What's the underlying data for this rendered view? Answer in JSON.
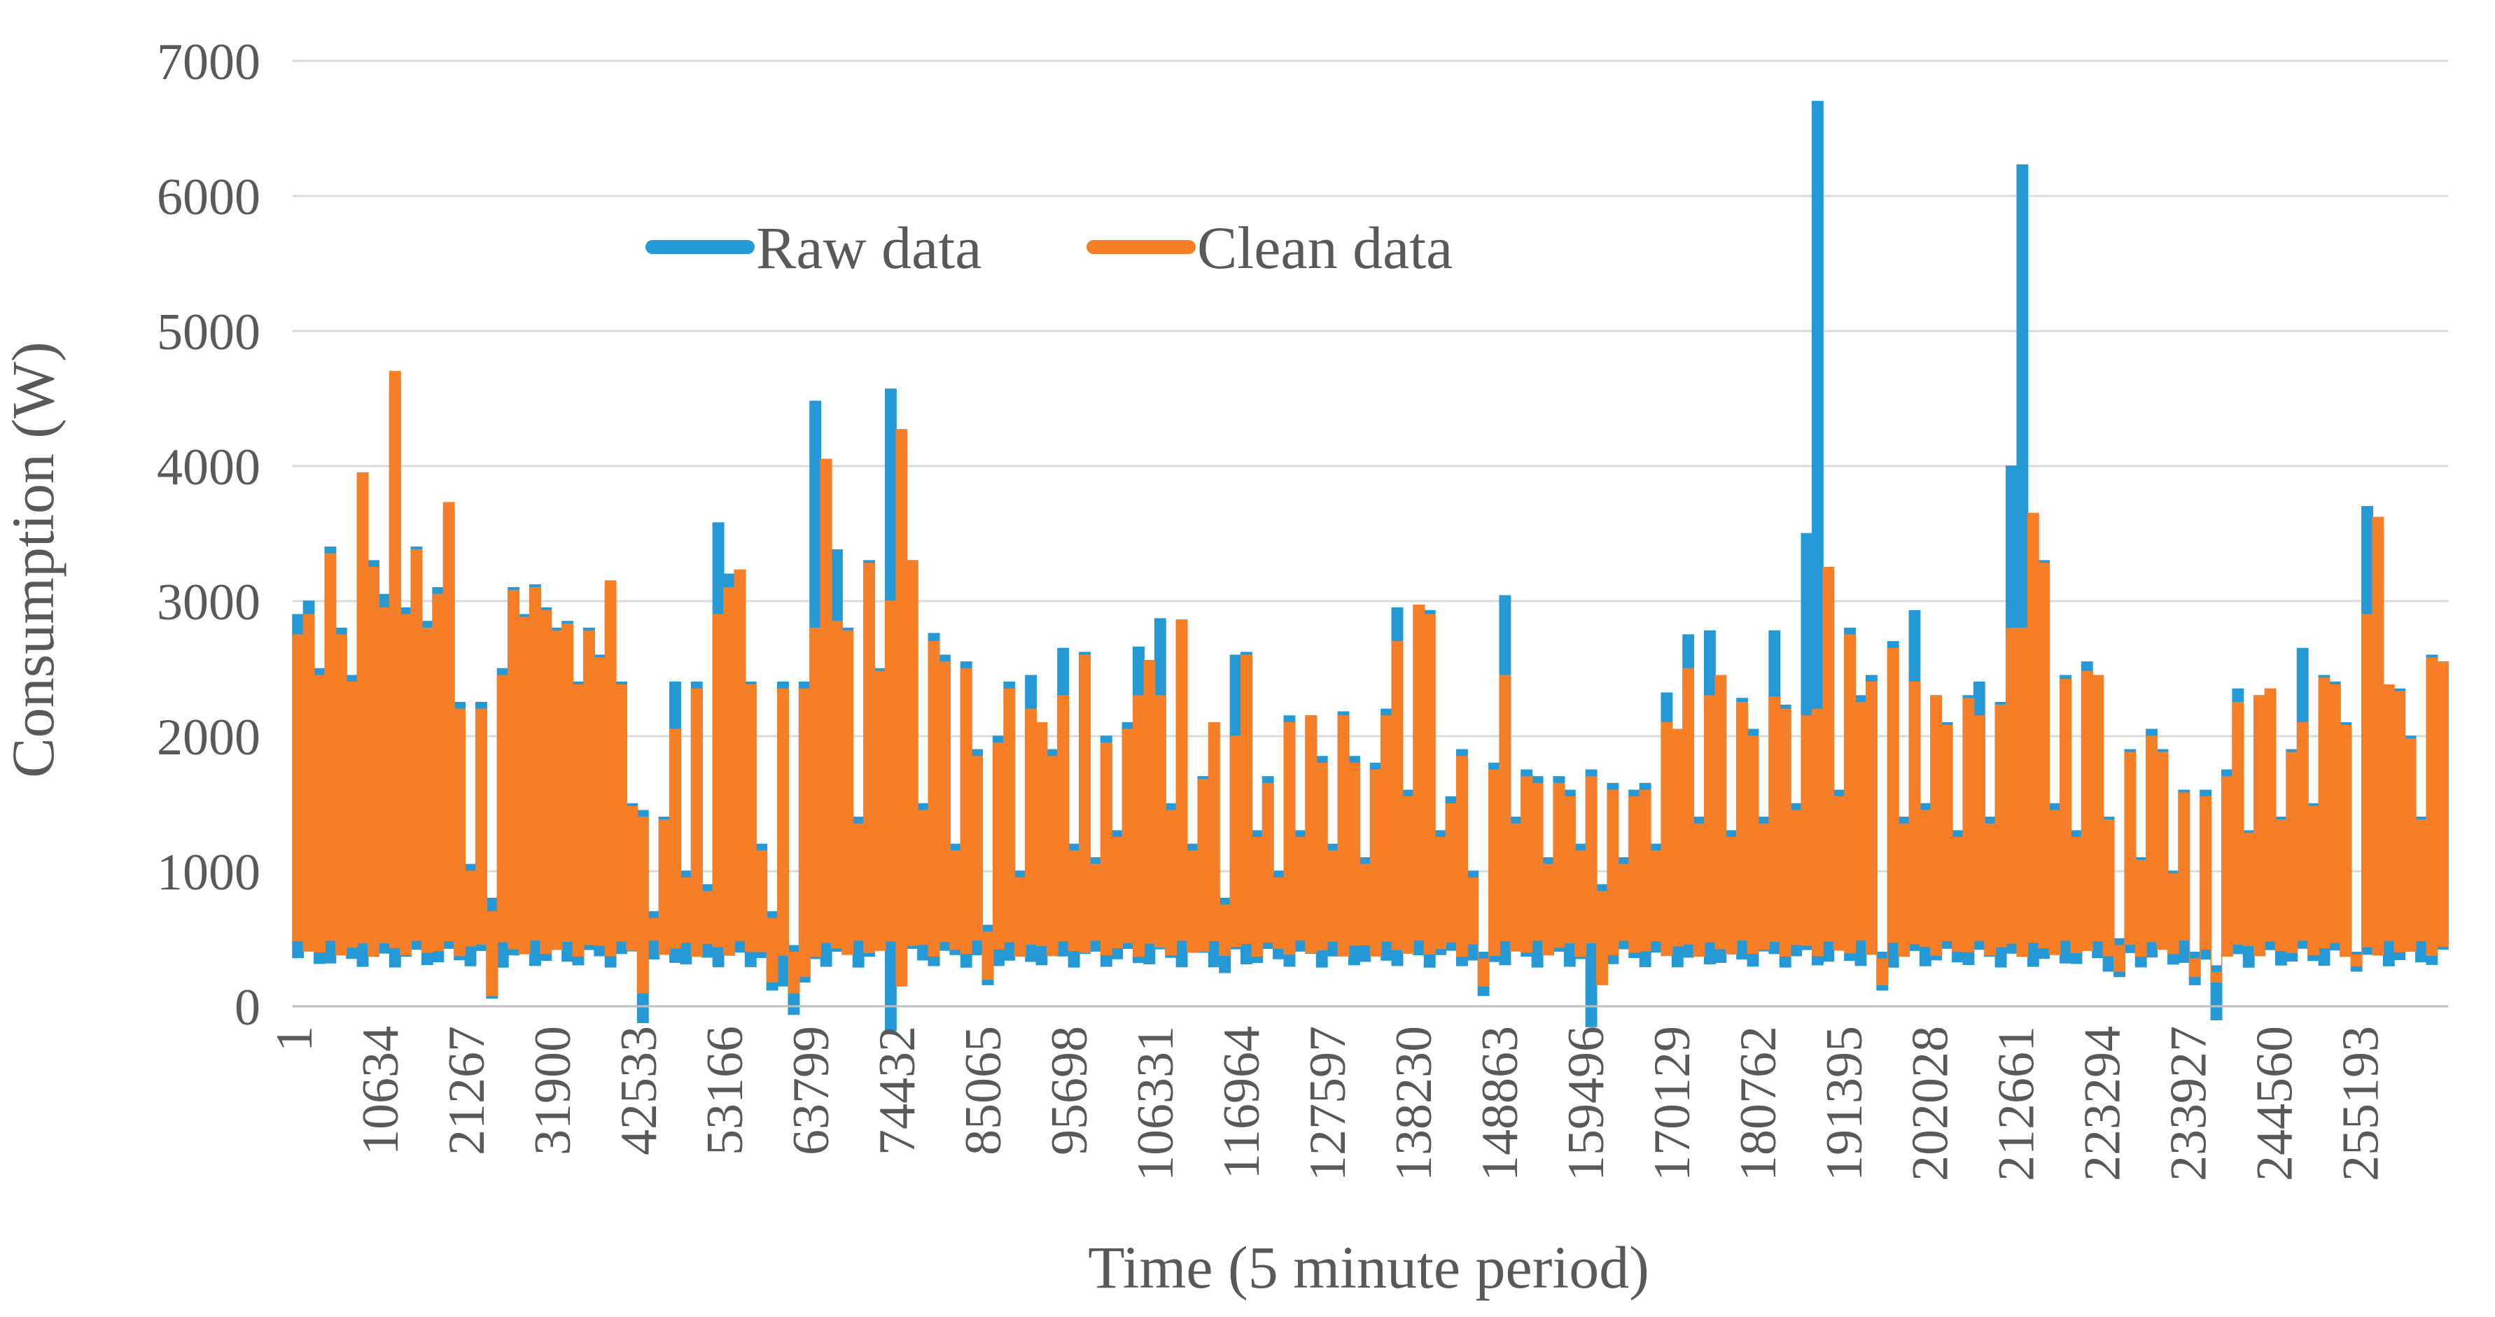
{
  "figure": {
    "type": "time-series consumption figure",
    "background": "#ffffff"
  },
  "colors": {
    "raw_series": "#2499D6",
    "clean_series": "#F57E26",
    "tick_text": "#595959",
    "gridline": "#D9D9D9",
    "axis_line": "#BFBFBF"
  },
  "chart_data": {
    "type": "area",
    "title": "",
    "xlabel": "Time (5 minute period)",
    "ylabel": "Consumption (W)",
    "ylim": [
      0,
      7000
    ],
    "yticks": [
      0,
      1000,
      2000,
      3000,
      4000,
      5000,
      6000,
      7000
    ],
    "xticks": [
      1,
      10634,
      21267,
      31900,
      42533,
      53166,
      63799,
      74432,
      85065,
      95698,
      106331,
      116964,
      127597,
      138230,
      148863,
      159496,
      170129,
      180762,
      191395,
      202028,
      212661,
      223294,
      233927,
      244560,
      255193
    ],
    "x_start": 1,
    "x_total": 266200,
    "sample_step": 1331,
    "grid": "horizontal",
    "legend_position": "top-center",
    "series": [
      {
        "name": "Raw data",
        "color": "#2499D6",
        "values": [
          2900,
          3000,
          2500,
          3400,
          2800,
          2450,
          3900,
          3300,
          3050,
          4600,
          2950,
          3400,
          2850,
          3100,
          3680,
          2250,
          1050,
          2250,
          800,
          2500,
          3100,
          2900,
          3120,
          2950,
          2800,
          2850,
          2400,
          2800,
          2600,
          3100,
          2400,
          1500,
          1450,
          700,
          1400,
          2400,
          1000,
          2400,
          900,
          3580,
          3200,
          3230,
          2400,
          1200,
          700,
          2400,
          450,
          2400,
          4480,
          4000,
          3380,
          2800,
          1400,
          3300,
          2500,
          4570,
          4100,
          3300,
          1500,
          2760,
          2600,
          1200,
          2550,
          1900,
          600,
          2000,
          2400,
          1000,
          2450,
          2100,
          1900,
          2650,
          1200,
          2620,
          1100,
          2000,
          1300,
          2100,
          2660,
          2560,
          2870,
          1500,
          2860,
          1200,
          1700,
          2100,
          800,
          2600,
          2620,
          1300,
          1700,
          1000,
          2150,
          1300,
          2150,
          1850,
          1200,
          2180,
          1850,
          1100,
          1800,
          2200,
          2950,
          1600,
          2970,
          2930,
          1300,
          1550,
          1900,
          1000,
          400,
          1800,
          3040,
          1400,
          1750,
          1700,
          1100,
          1700,
          1600,
          1200,
          1750,
          900,
          1650,
          1100,
          1600,
          1650,
          1200,
          2320,
          2050,
          2750,
          1400,
          2780,
          2450,
          1300,
          2280,
          2050,
          1400,
          2780,
          2230,
          1500,
          3500,
          6700,
          3000,
          1600,
          2800,
          2300,
          2450,
          400,
          2700,
          1400,
          2930,
          1500,
          2300,
          2100,
          1300,
          2300,
          2400,
          1400,
          2250,
          4000,
          6230,
          3000,
          3300,
          1500,
          2450,
          1300,
          2550,
          2450,
          1400,
          500,
          1900,
          1100,
          2050,
          1900,
          1000,
          1600,
          400,
          1600,
          300,
          1750,
          2350,
          1300,
          2300,
          2350,
          1400,
          1900,
          2650,
          1500,
          2450,
          2400,
          2100,
          400,
          3700,
          3100,
          1500,
          2350,
          2000,
          1400,
          2600,
          2550
        ],
        "bottom_wave": {
          "base": 360,
          "amp": 70,
          "freq": 1.9,
          "phase": 0
        },
        "bottom_overrides": {
          "18": 60,
          "32": -120,
          "44": 120,
          "45": 150,
          "46": -60,
          "47": 180,
          "55": -180,
          "64": 160,
          "86": 250,
          "110": 80,
          "120": -150,
          "147": 120,
          "168": 260,
          "169": 220,
          "176": 160,
          "178": -100,
          "191": 260
        }
      },
      {
        "name": "Clean data",
        "color": "#F57E26",
        "values": [
          2750,
          2900,
          2450,
          3350,
          2750,
          2400,
          3950,
          3250,
          2950,
          4700,
          2900,
          3380,
          2800,
          3050,
          3730,
          2200,
          1000,
          2200,
          700,
          2450,
          3080,
          2880,
          3100,
          2930,
          2780,
          2830,
          2380,
          2780,
          2580,
          3150,
          2380,
          1480,
          1400,
          650,
          1380,
          2050,
          950,
          2350,
          850,
          2900,
          3100,
          3230,
          2380,
          1150,
          650,
          2350,
          400,
          2350,
          2800,
          4050,
          2850,
          2780,
          1350,
          3280,
          2480,
          3000,
          4270,
          3300,
          1450,
          2700,
          2550,
          1150,
          2500,
          1850,
          550,
          1950,
          2350,
          950,
          2200,
          2100,
          1850,
          2300,
          1150,
          2600,
          1050,
          1950,
          1250,
          2050,
          2300,
          2560,
          2300,
          1450,
          2860,
          1150,
          1680,
          2100,
          750,
          2000,
          2600,
          1250,
          1650,
          950,
          2100,
          1250,
          2150,
          1800,
          1150,
          2150,
          1800,
          1050,
          1750,
          2150,
          2700,
          1550,
          2970,
          2900,
          1250,
          1500,
          1850,
          950,
          350,
          1750,
          2450,
          1350,
          1700,
          1650,
          1050,
          1650,
          1550,
          1150,
          1700,
          850,
          1600,
          1050,
          1550,
          1600,
          1150,
          2100,
          2050,
          2500,
          1350,
          2300,
          2450,
          1250,
          2250,
          2000,
          1350,
          2290,
          2200,
          1450,
          2150,
          2200,
          3250,
          1550,
          2750,
          2250,
          2400,
          350,
          2650,
          1350,
          2400,
          1450,
          2300,
          2080,
          1250,
          2280,
          2150,
          1350,
          2230,
          2800,
          2800,
          3650,
          3280,
          1450,
          2420,
          1250,
          2480,
          2450,
          1380,
          450,
          1880,
          1080,
          2000,
          1880,
          980,
          1580,
          350,
          1550,
          250,
          1700,
          2250,
          1280,
          2300,
          2350,
          1380,
          1880,
          2100,
          1480,
          2430,
          2380,
          2080,
          380,
          2900,
          3620,
          2380,
          2330,
          1980,
          1380,
          2580,
          2550
        ],
        "bottom_wave": {
          "base": 430,
          "amp": 60,
          "freq": 2.3,
          "phase": 1.2
        },
        "bottom_overrides": {
          "18": 80,
          "32": 100,
          "44": 180,
          "46": 100,
          "47": 220,
          "56": 150,
          "64": 200,
          "110": 150,
          "121": 160,
          "147": 160,
          "169": 260,
          "176": 220,
          "178": 180,
          "191": 300
        }
      }
    ]
  }
}
